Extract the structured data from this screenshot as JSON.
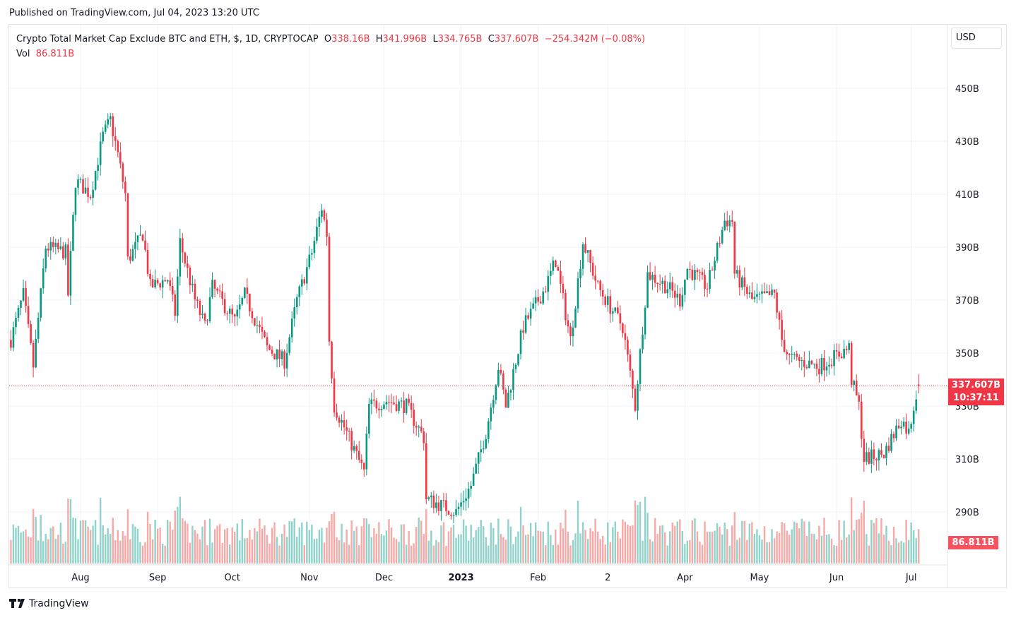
{
  "published": "Published on TradingView.com, Jul 04, 2023 13:20 UTC",
  "legend": {
    "symbol": "Crypto Total Market Cap Exclude BTC and ETH, $, 1D, CRYPTOCAP",
    "o_label": "O",
    "o": "338.16B",
    "h_label": "H",
    "h": "341.996B",
    "l_label": "L",
    "l": "334.765B",
    "c_label": "C",
    "c": "337.607B",
    "change": "−254.342M (−0.08%)",
    "vol_label": "Vol",
    "vol": "86.811B"
  },
  "currency": "USD",
  "price_tag": {
    "price": "337.607B",
    "countdown": "10:37:11"
  },
  "volume_tag": "86.811B",
  "logo": "TradingView",
  "colors": {
    "up": "#089981",
    "down": "#f23645",
    "vol_up": "#8fd3ca",
    "vol_down": "#f7a9a7"
  },
  "chart_data": {
    "type": "candlestick",
    "interval": "1D",
    "current_price": 337.607,
    "y_ticks": [
      "290B",
      "310B",
      "330B",
      "350B",
      "370B",
      "390B",
      "410B",
      "430B",
      "450B"
    ],
    "y_tick_values": [
      290,
      310,
      330,
      350,
      370,
      390,
      410,
      430,
      450
    ],
    "x_ticks": [
      {
        "label": "Aug",
        "date": "2022-08-01"
      },
      {
        "label": "Sep",
        "date": "2022-09-01"
      },
      {
        "label": "Oct",
        "date": "2022-10-01"
      },
      {
        "label": "Nov",
        "date": "2022-11-01"
      },
      {
        "label": "Dec",
        "date": "2022-12-01"
      },
      {
        "label": "2023",
        "date": "2023-01-01",
        "bold": true
      },
      {
        "label": "Feb",
        "date": "2023-02-01"
      },
      {
        "label": "2",
        "date": "2023-03-01"
      },
      {
        "label": "Apr",
        "date": "2023-04-01"
      },
      {
        "label": "May",
        "date": "2023-05-01"
      },
      {
        "label": "Jun",
        "date": "2023-06-01"
      },
      {
        "label": "Jul",
        "date": "2023-07-01"
      }
    ],
    "close_samples": [
      [
        "2022-07-04",
        355
      ],
      [
        "2022-07-09",
        372
      ],
      [
        "2022-07-13",
        345
      ],
      [
        "2022-07-18",
        390
      ],
      [
        "2022-07-26",
        388
      ],
      [
        "2022-07-27",
        372
      ],
      [
        "2022-07-30",
        415
      ],
      [
        "2022-08-05",
        410
      ],
      [
        "2022-08-10",
        432
      ],
      [
        "2022-08-13",
        438
      ],
      [
        "2022-08-16",
        425
      ],
      [
        "2022-08-19",
        410
      ],
      [
        "2022-08-20",
        385
      ],
      [
        "2022-08-26",
        395
      ],
      [
        "2022-08-29",
        375
      ],
      [
        "2022-09-05",
        378
      ],
      [
        "2022-09-08",
        365
      ],
      [
        "2022-09-10",
        392
      ],
      [
        "2022-09-16",
        370
      ],
      [
        "2022-09-20",
        360
      ],
      [
        "2022-09-23",
        375
      ],
      [
        "2022-10-02",
        362
      ],
      [
        "2022-10-06",
        372
      ],
      [
        "2022-10-15",
        352
      ],
      [
        "2022-10-22",
        347
      ],
      [
        "2022-10-27",
        370
      ],
      [
        "2022-11-02",
        388
      ],
      [
        "2022-11-06",
        405
      ],
      [
        "2022-11-08",
        395
      ],
      [
        "2022-11-09",
        355
      ],
      [
        "2022-11-11",
        330
      ],
      [
        "2022-11-15",
        322
      ],
      [
        "2022-11-23",
        305
      ],
      [
        "2022-11-25",
        330
      ],
      [
        "2022-12-02",
        332
      ],
      [
        "2022-12-10",
        330
      ],
      [
        "2022-12-17",
        318
      ],
      [
        "2022-12-18",
        295
      ],
      [
        "2022-12-30",
        290
      ],
      [
        "2023-01-05",
        300
      ],
      [
        "2023-01-11",
        320
      ],
      [
        "2023-01-16",
        345
      ],
      [
        "2023-01-19",
        330
      ],
      [
        "2023-01-26",
        360
      ],
      [
        "2023-02-04",
        375
      ],
      [
        "2023-02-08",
        385
      ],
      [
        "2023-02-14",
        355
      ],
      [
        "2023-02-19",
        392
      ],
      [
        "2023-02-25",
        375
      ],
      [
        "2023-03-07",
        360
      ],
      [
        "2023-03-12",
        330
      ],
      [
        "2023-03-17",
        380
      ],
      [
        "2023-03-25",
        375
      ],
      [
        "2023-03-30",
        370
      ],
      [
        "2023-04-02",
        382
      ],
      [
        "2023-04-10",
        375
      ],
      [
        "2023-04-17",
        400
      ],
      [
        "2023-04-20",
        400
      ],
      [
        "2023-04-21",
        380
      ],
      [
        "2023-04-28",
        370
      ],
      [
        "2023-05-07",
        372
      ],
      [
        "2023-05-10",
        355
      ],
      [
        "2023-05-13",
        348
      ],
      [
        "2023-05-25",
        345
      ],
      [
        "2023-06-06",
        352
      ],
      [
        "2023-06-07",
        340
      ],
      [
        "2023-06-10",
        330
      ],
      [
        "2023-06-12",
        310
      ],
      [
        "2023-06-20",
        312
      ],
      [
        "2023-06-27",
        325
      ],
      [
        "2023-06-30",
        320
      ],
      [
        "2023-07-03",
        335
      ],
      [
        "2023-07-04",
        337.607
      ]
    ],
    "last_candle": {
      "open": 338.16,
      "high": 341.996,
      "low": 334.765,
      "close": 337.607,
      "volume": "86.811B"
    }
  }
}
